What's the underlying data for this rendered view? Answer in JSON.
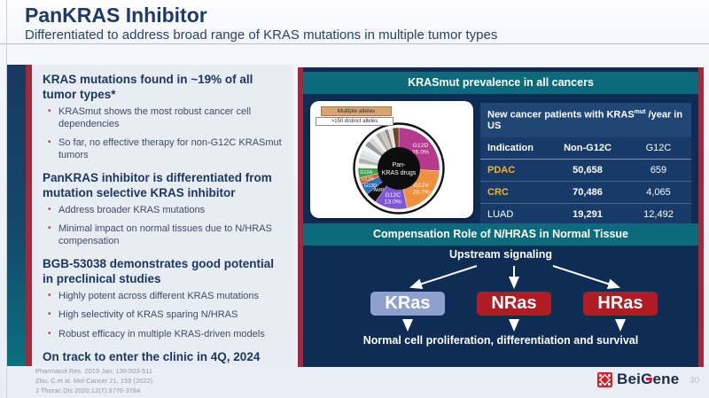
{
  "slide": {
    "title": "PanKRAS Inhibitor",
    "subtitle": "Differentiated to address broad range of KRAS mutations in multiple tumor types",
    "page_number": "30",
    "brand": {
      "pre": "Bei",
      "g": "G",
      "post": "ene"
    }
  },
  "left_panel": {
    "sections": [
      {
        "heading": "KRAS mutations found in ~19% of all tumor types*",
        "bullets": [
          "KRASmut shows the most robust cancer cell dependencies",
          "So far, no effective therapy for non-G12C KRASmut tumors"
        ]
      },
      {
        "heading": "PanKRAS inhibitor is differentiated from mutation selective KRAS inhibitor",
        "bullets": [
          "Address broader KRAS mutations",
          "Minimal impact on normal tissues due to N/HRAS compensation"
        ]
      },
      {
        "heading": "BGB-53038 demonstrates good potential in preclinical studies",
        "bullets": [
          "Highly potent across different KRAS mutations",
          "High selectivity of KRAS sparing N/HRAS",
          "Robust efficacy in multiple KRAS-driven models"
        ]
      },
      {
        "heading": "On track to enter the clinic in 4Q, 2024",
        "bullets": []
      }
    ],
    "references": [
      "Pharmacol Res. 2019 Jan; 139:503-511",
      "Zhu, C.et al. Mol Cancer 21, 159 (2022)",
      "J Thorac Dis 2020;12(7):3776-3784"
    ]
  },
  "right_panel": {
    "header_prevalence": "KRASmut prevalence in all cancers",
    "pie_card": {
      "callout_primary": "Multiple alleles",
      "callout_secondary": ">150 distinct alleles",
      "center_line1": "Pan-",
      "center_line2": "KRAS drugs"
    },
    "table": {
      "title_pre": "New cancer patients with KRAS",
      "title_sup": "mut",
      "title_post": " /year in US",
      "columns": [
        "Indication",
        "Non-G12C",
        "G12C"
      ],
      "rows": [
        {
          "indication": "PDAC",
          "non_g12c": "50,658",
          "g12c": "659",
          "highlight": true
        },
        {
          "indication": "CRC",
          "non_g12c": "70,486",
          "g12c": "4,065",
          "highlight": true
        },
        {
          "indication": "LUAD",
          "non_g12c": "19,291",
          "g12c": "12,492",
          "highlight": false
        }
      ]
    },
    "header_compensation": "Compensation Role of N/HRAS in Normal Tissue",
    "diagram": {
      "top_label": "Upstream signaling",
      "nodes": [
        {
          "label": "KRas",
          "color": "#8ea0cd"
        },
        {
          "label": "NRas",
          "color": "#b01b24"
        },
        {
          "label": "HRas",
          "color": "#b01b24"
        }
      ],
      "bottom_label": "Normal cell proliferation, differentiation and survival"
    }
  },
  "colors": {
    "teal_header": "#0d6a7d",
    "panel_navy": "#0e2c54",
    "accent_red": "#a3293a",
    "gold": "#f3b530",
    "heading_navy": "#1b3864",
    "node_red": "#b01b24",
    "node_blue": "#8ea0cd"
  },
  "chart_data": {
    "type": "pie",
    "title": "KRASmut prevalence in all cancers",
    "center_label": "Pan-KRAS drugs",
    "legend_position": "on-slice",
    "slices": [
      {
        "label": "G12D",
        "value": 26.0,
        "color": "#b53a8e",
        "show_pct": true
      },
      {
        "label": "G12V",
        "value": 20.7,
        "color": "#ef913e",
        "show_pct": true
      },
      {
        "label": "G12C",
        "value": 13.0,
        "color": "#7e57d6",
        "show_pct": true
      },
      {
        "label": "AMP",
        "value": 4.5,
        "color": "#111111",
        "show_pct": false
      },
      {
        "label": "G13D",
        "value": 4.5,
        "color": "#2e6fbe",
        "show_pct": false
      },
      {
        "label": "G12R",
        "value": 2.5,
        "color": "#d2622a",
        "show_pct": false
      },
      {
        "label": "G12A",
        "value": 4.0,
        "color": "#3fa34d",
        "show_pct": false
      },
      {
        "label": "",
        "value": 1.8,
        "color": "#f2f2f2"
      },
      {
        "label": "",
        "value": 2.2,
        "color": "#b3b3b3"
      },
      {
        "label": "",
        "value": 2.0,
        "color": "#dcdcdc"
      },
      {
        "label": "",
        "value": 1.6,
        "color": "#cdeef2"
      },
      {
        "label": "",
        "value": 1.6,
        "color": "#f5f5f5"
      },
      {
        "label": "",
        "value": 2.4,
        "color": "#9c9c9c"
      },
      {
        "label": "",
        "value": 2.0,
        "color": "#d4d4d4"
      },
      {
        "label": "",
        "value": 1.6,
        "color": "#ededed"
      },
      {
        "label": "",
        "value": 2.0,
        "color": "#adadad"
      },
      {
        "label": "",
        "value": 1.8,
        "color": "#cfc4b0"
      },
      {
        "label": "",
        "value": 1.6,
        "color": "#8f8f8f"
      },
      {
        "label": "",
        "value": 1.7,
        "color": "#e3e3e3"
      },
      {
        "label": "",
        "value": 2.5,
        "color": "#6e4523"
      }
    ]
  }
}
